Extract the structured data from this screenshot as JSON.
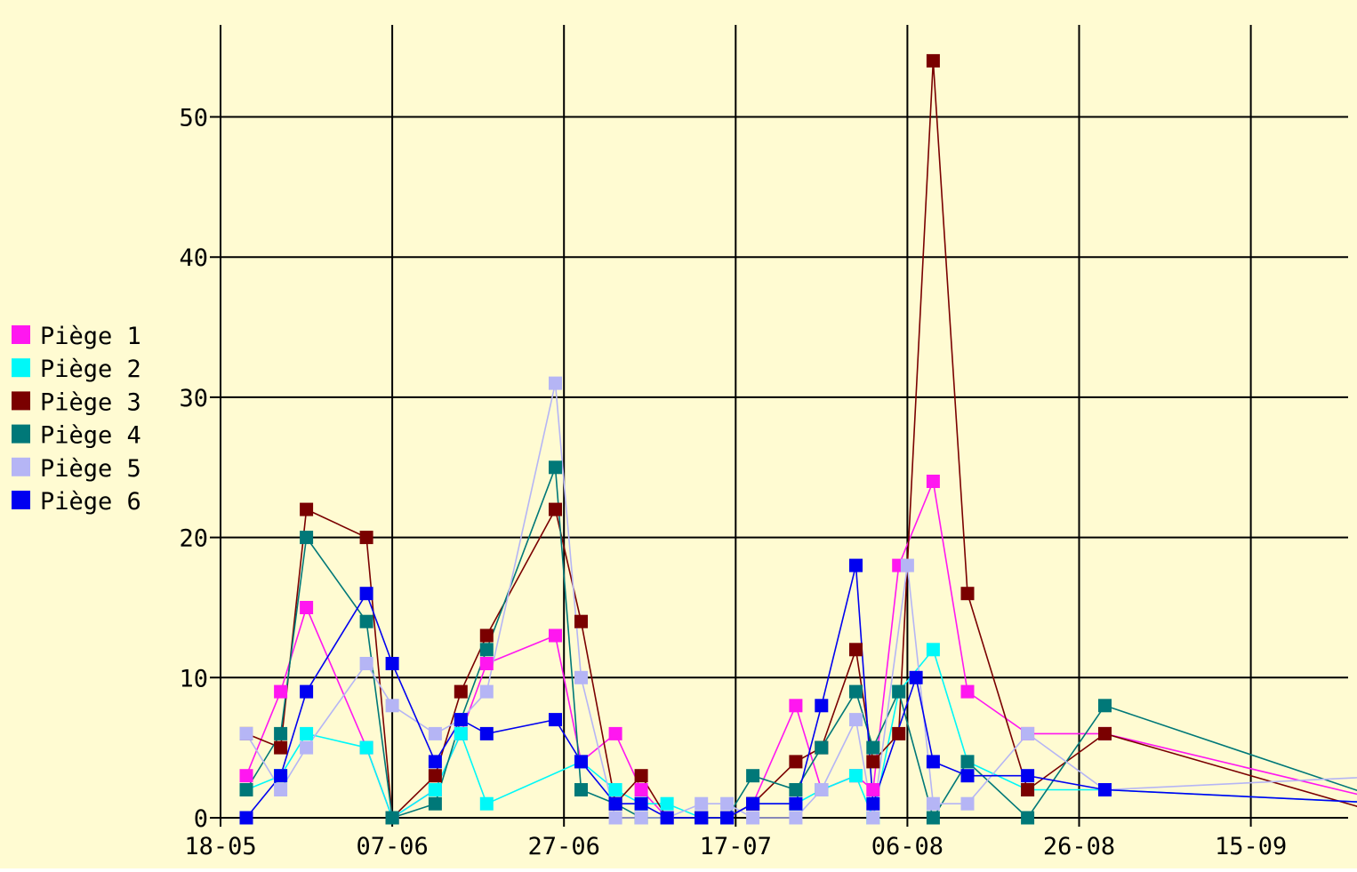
{
  "chart_data": {
    "type": "line",
    "title": "",
    "xlabel": "",
    "ylabel": "",
    "x_tick_labels": [
      "18-05",
      "07-06",
      "27-06",
      "17-07",
      "06-08",
      "26-08",
      "15-09"
    ],
    "y_tick_labels": [
      "0",
      "10",
      "20",
      "30",
      "40",
      "50"
    ],
    "xlim_days": [
      "18-05",
      "02-10"
    ],
    "ylim": [
      0,
      56
    ],
    "grid": true,
    "legend_position": "left",
    "background_color": "#fffbd2",
    "series": [
      {
        "name": "Piège 1",
        "color": "#ff17f0",
        "points": [
          [
            "21-05",
            3
          ],
          [
            "25-05",
            9
          ],
          [
            "28-05",
            15
          ],
          [
            "04-06",
            5
          ],
          [
            "07-06",
            0
          ],
          [
            "12-06",
            2
          ],
          [
            "15-06",
            6
          ],
          [
            "18-06",
            11
          ],
          [
            "26-06",
            13
          ],
          [
            "29-06",
            4
          ],
          [
            "03-07",
            6
          ],
          [
            "06-07",
            2
          ],
          [
            "09-07",
            0
          ],
          [
            "13-07",
            0
          ],
          [
            "16-07",
            0
          ],
          [
            "19-07",
            1
          ],
          [
            "24-07",
            8
          ],
          [
            "27-07",
            2
          ],
          [
            "31-07",
            3
          ],
          [
            "02-08",
            2
          ],
          [
            "05-08",
            18
          ],
          [
            "09-08",
            24
          ],
          [
            "13-08",
            9
          ],
          [
            "20-08",
            6
          ],
          [
            "29-08",
            6
          ],
          [
            "02-10",
            1
          ]
        ]
      },
      {
        "name": "Piège 2",
        "color": "#00f8f8",
        "points": [
          [
            "21-05",
            2
          ],
          [
            "25-05",
            3
          ],
          [
            "28-05",
            6
          ],
          [
            "04-06",
            5
          ],
          [
            "07-06",
            0
          ],
          [
            "12-06",
            2
          ],
          [
            "15-06",
            6
          ],
          [
            "18-06",
            1
          ],
          [
            "29-06",
            4
          ],
          [
            "03-07",
            2
          ],
          [
            "06-07",
            1
          ],
          [
            "09-07",
            1
          ],
          [
            "13-07",
            0
          ],
          [
            "16-07",
            0
          ],
          [
            "19-07",
            1
          ],
          [
            "24-07",
            1
          ],
          [
            "27-07",
            2
          ],
          [
            "31-07",
            3
          ],
          [
            "02-08",
            0
          ],
          [
            "05-08",
            9
          ],
          [
            "09-08",
            12
          ],
          [
            "13-08",
            4
          ],
          [
            "20-08",
            2
          ],
          [
            "29-08",
            2
          ],
          [
            "02-10",
            1
          ]
        ]
      },
      {
        "name": "Piège 3",
        "color": "#7a0000",
        "points": [
          [
            "21-05",
            6
          ],
          [
            "25-05",
            5
          ],
          [
            "28-05",
            22
          ],
          [
            "04-06",
            20
          ],
          [
            "07-06",
            0
          ],
          [
            "12-06",
            3
          ],
          [
            "15-06",
            9
          ],
          [
            "18-06",
            13
          ],
          [
            "26-06",
            22
          ],
          [
            "29-06",
            14
          ],
          [
            "03-07",
            1
          ],
          [
            "06-07",
            3
          ],
          [
            "09-07",
            0
          ],
          [
            "13-07",
            0
          ],
          [
            "16-07",
            0
          ],
          [
            "19-07",
            1
          ],
          [
            "24-07",
            4
          ],
          [
            "27-07",
            5
          ],
          [
            "31-07",
            12
          ],
          [
            "02-08",
            4
          ],
          [
            "05-08",
            6
          ],
          [
            "09-08",
            54
          ],
          [
            "13-08",
            16
          ],
          [
            "20-08",
            2
          ],
          [
            "29-08",
            6
          ],
          [
            "02-10",
            0
          ]
        ]
      },
      {
        "name": "Piège 4",
        "color": "#007878",
        "points": [
          [
            "21-05",
            2
          ],
          [
            "25-05",
            6
          ],
          [
            "28-05",
            20
          ],
          [
            "04-06",
            14
          ],
          [
            "07-06",
            0
          ],
          [
            "12-06",
            1
          ],
          [
            "15-06",
            7
          ],
          [
            "18-06",
            12
          ],
          [
            "26-06",
            25
          ],
          [
            "29-06",
            2
          ],
          [
            "03-07",
            1
          ],
          [
            "06-07",
            0
          ],
          [
            "09-07",
            0
          ],
          [
            "13-07",
            0
          ],
          [
            "16-07",
            0
          ],
          [
            "19-07",
            3
          ],
          [
            "24-07",
            2
          ],
          [
            "27-07",
            5
          ],
          [
            "31-07",
            9
          ],
          [
            "02-08",
            5
          ],
          [
            "05-08",
            9
          ],
          [
            "09-08",
            0
          ],
          [
            "13-08",
            4
          ],
          [
            "20-08",
            0
          ],
          [
            "29-08",
            8
          ],
          [
            "02-10",
            1
          ]
        ]
      },
      {
        "name": "Piège 5",
        "color": "#b5b5f5",
        "points": [
          [
            "21-05",
            6
          ],
          [
            "25-05",
            2
          ],
          [
            "28-05",
            5
          ],
          [
            "04-06",
            11
          ],
          [
            "07-06",
            8
          ],
          [
            "12-06",
            6
          ],
          [
            "15-06",
            7
          ],
          [
            "18-06",
            9
          ],
          [
            "26-06",
            31
          ],
          [
            "29-06",
            10
          ],
          [
            "03-07",
            0
          ],
          [
            "06-07",
            0
          ],
          [
            "09-07",
            0
          ],
          [
            "13-07",
            1
          ],
          [
            "16-07",
            1
          ],
          [
            "19-07",
            0
          ],
          [
            "24-07",
            0
          ],
          [
            "27-07",
            2
          ],
          [
            "31-07",
            7
          ],
          [
            "02-08",
            0
          ],
          [
            "06-08",
            18
          ],
          [
            "09-08",
            1
          ],
          [
            "13-08",
            1
          ],
          [
            "20-08",
            6
          ],
          [
            "29-08",
            2
          ],
          [
            "02-10",
            3
          ]
        ]
      },
      {
        "name": "Piège 6",
        "color": "#0000f0",
        "points": [
          [
            "21-05",
            0
          ],
          [
            "25-05",
            3
          ],
          [
            "28-05",
            9
          ],
          [
            "04-06",
            16
          ],
          [
            "07-06",
            11
          ],
          [
            "12-06",
            4
          ],
          [
            "15-06",
            7
          ],
          [
            "18-06",
            6
          ],
          [
            "26-06",
            7
          ],
          [
            "29-06",
            4
          ],
          [
            "03-07",
            1
          ],
          [
            "06-07",
            1
          ],
          [
            "09-07",
            0
          ],
          [
            "13-07",
            0
          ],
          [
            "16-07",
            0
          ],
          [
            "19-07",
            1
          ],
          [
            "24-07",
            1
          ],
          [
            "27-07",
            8
          ],
          [
            "31-07",
            18
          ],
          [
            "02-08",
            1
          ],
          [
            "07-08",
            10
          ],
          [
            "09-08",
            4
          ],
          [
            "13-08",
            3
          ],
          [
            "20-08",
            3
          ],
          [
            "29-08",
            2
          ],
          [
            "02-10",
            1
          ]
        ]
      }
    ]
  }
}
